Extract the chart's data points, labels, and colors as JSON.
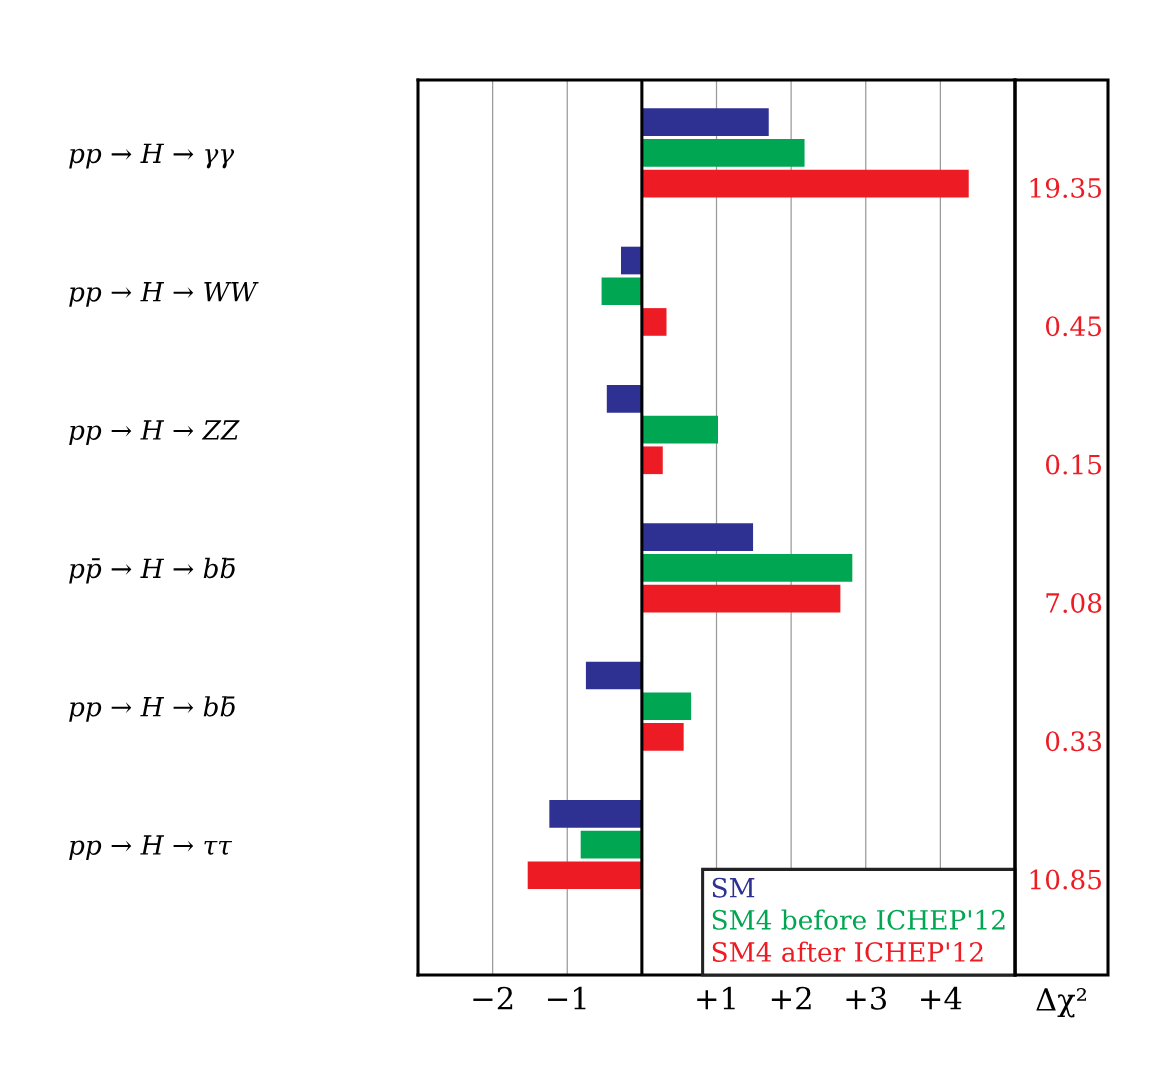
{
  "chart_data": {
    "type": "bar",
    "orientation": "horizontal",
    "categories": [
      "pp → H → γγ",
      "pp → H → WW",
      "pp → H → ZZ",
      "pp̄ → H → bb̄",
      "pp → H → bb̄",
      "pp → H → ττ"
    ],
    "series": [
      {
        "name": "SM",
        "color": "#2e3192",
        "values": [
          1.7,
          -0.28,
          -0.47,
          1.49,
          -0.75,
          -1.24
        ]
      },
      {
        "name": "SM4 before ICHEP'12",
        "color": "#00a651",
        "values": [
          2.18,
          -0.54,
          1.02,
          2.82,
          0.66,
          -0.82
        ]
      },
      {
        "name": "SM4 after ICHEP'12",
        "color": "#ed1c24",
        "values": [
          4.38,
          0.33,
          0.28,
          2.66,
          0.56,
          -1.53
        ]
      }
    ],
    "xlim": [
      -3,
      5
    ],
    "xticks": [
      {
        "value": -2,
        "label": "−2"
      },
      {
        "value": -1,
        "label": "−1"
      },
      {
        "value": 0,
        "label": null
      },
      {
        "value": 1,
        "label": "+1"
      },
      {
        "value": 2,
        "label": "+2"
      },
      {
        "value": 3,
        "label": "+3"
      },
      {
        "value": 4,
        "label": "+4"
      }
    ],
    "grid": "x",
    "legend": "bottom right",
    "ref_lines": [
      {
        "axis": "x",
        "value": 0,
        "color": "#000000"
      }
    ],
    "annotations": [
      "19.35",
      "0.45",
      "0.15",
      "7.08",
      "0.33",
      "10.85",
      "Δχ²"
    ]
  }
}
